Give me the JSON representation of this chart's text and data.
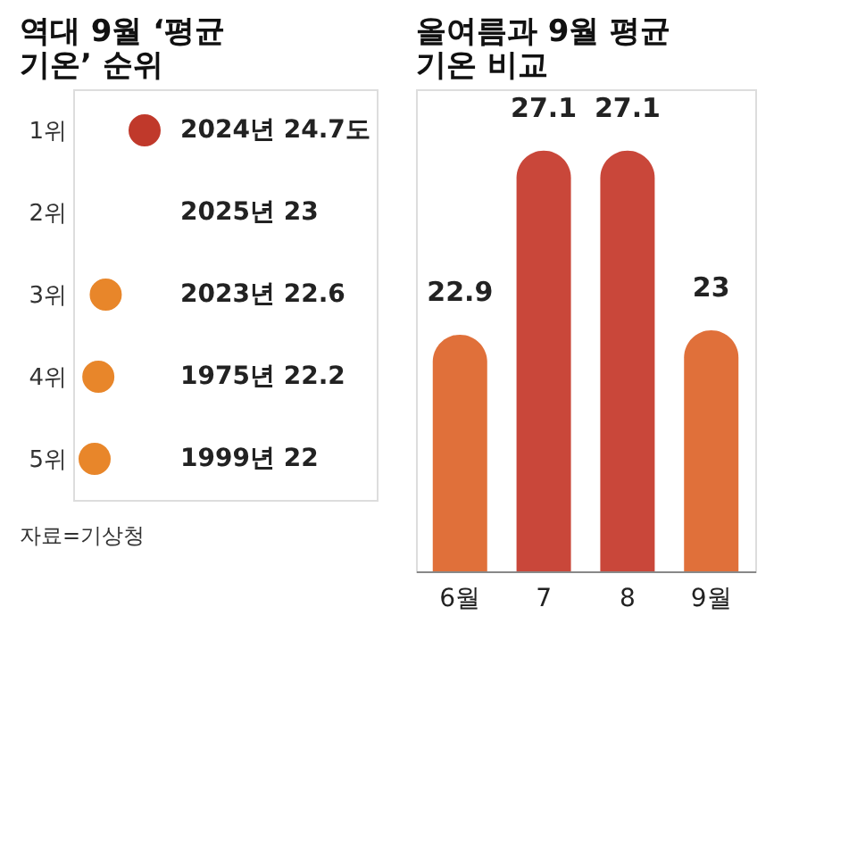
{
  "chart_data": [
    {
      "type": "scatter",
      "title": "역대 9월 ‘평균 기온’ 순위",
      "orientation": "horizontal",
      "categories": [
        "1위",
        "2위",
        "3위",
        "4위",
        "5위"
      ],
      "values": [
        24.7,
        null,
        22.6,
        22.2,
        22
      ],
      "value_labels": [
        "2024년 24.7도",
        "2025년 23",
        "2023년 22.6",
        "1975년 22.2",
        "1999년 22"
      ],
      "colors": [
        "#c0392b",
        null,
        "#e8862a",
        "#e8862a",
        "#e8862a"
      ],
      "tick_labels": "y",
      "marker": "circle",
      "annotations": [
        "자료=기상청"
      ]
    },
    {
      "type": "bar",
      "title": "올여름과 9월 평균 기온 비교",
      "categories": [
        "6월",
        "7",
        "8",
        "9월"
      ],
      "values": [
        22.9,
        27.1,
        27.1,
        23
      ],
      "colors": [
        "#e0703a",
        "#c9473a",
        "#c9473a",
        "#e0703a"
      ],
      "ylim": [
        17.5,
        28.5
      ],
      "data_labels": true,
      "tick_labels": "x"
    }
  ]
}
